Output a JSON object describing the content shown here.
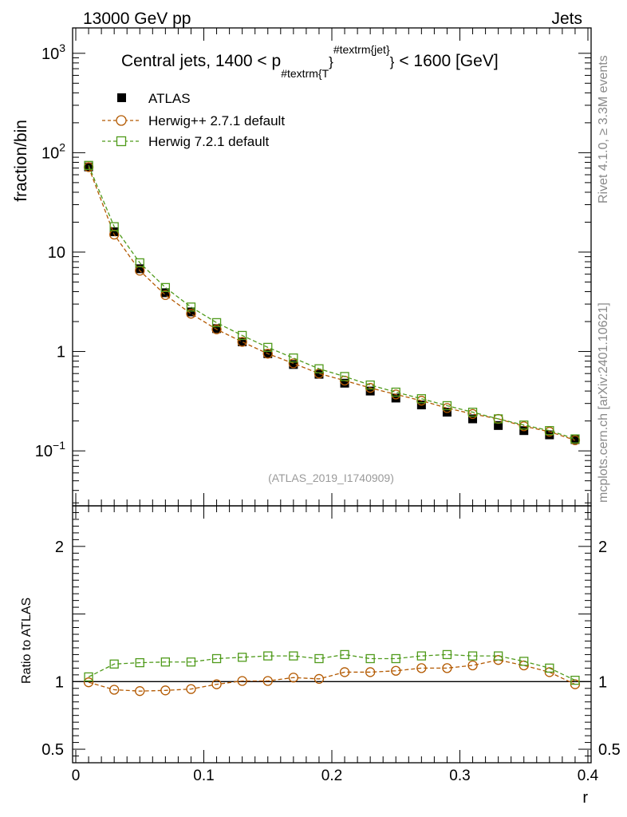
{
  "header": {
    "left": "13000 GeV pp",
    "right": "Jets"
  },
  "side_labels": {
    "rivet": "Rivet 4.1.0, ≥ 3.3M events",
    "mcplots": "mcplots.cern.ch [arXiv:2401.10621]"
  },
  "chart_data": {
    "type": "line",
    "title": "Central jets, 1400 < p",
    "title_sub": "#textrm{T",
    "title_sup": "#textrm{jet}",
    "title_end": "< 1600 [GeV]",
    "watermark": "(ATLAS_2019_I1740909)",
    "xlabel": "r",
    "ylabel_main": "fraction/bin",
    "ylabel_ratio": "Ratio to ATLAS",
    "xlim": [
      -0.0025,
      0.4025
    ],
    "ylim_main": [
      0.028,
      1800
    ],
    "ylim_ratio": [
      0.4,
      2.3
    ],
    "x_ticks": [
      0,
      0.1,
      0.2,
      0.3,
      0.4
    ],
    "x_tick_labels": [
      "0",
      "0.1",
      "0.2",
      "0.3",
      "0.4"
    ],
    "y_ticks_main": [
      0.1,
      1,
      10,
      100,
      1000
    ],
    "y_tick_labels_main": [
      {
        "base": "10",
        "exp": "−1"
      },
      {
        "base": "1",
        "exp": ""
      },
      {
        "base": "10",
        "exp": ""
      },
      {
        "base": "10",
        "exp": "2"
      },
      {
        "base": "10",
        "exp": "3"
      }
    ],
    "y_ticks_ratio": [
      0.5,
      1,
      2
    ],
    "y_tick_labels_ratio": [
      "0.5",
      "1",
      "2"
    ],
    "x": [
      0.01,
      0.03,
      0.05,
      0.07,
      0.09,
      0.11,
      0.13,
      0.15,
      0.17,
      0.19,
      0.21,
      0.23,
      0.25,
      0.27,
      0.29,
      0.31,
      0.33,
      0.35,
      0.37,
      0.39
    ],
    "series": [
      {
        "name": "ATLAS",
        "color": "#000000",
        "marker": "filled-square",
        "values": [
          72,
          16,
          6.8,
          3.9,
          2.5,
          1.7,
          1.25,
          0.95,
          0.74,
          0.59,
          0.48,
          0.4,
          0.34,
          0.29,
          0.245,
          0.21,
          0.18,
          0.16,
          0.145,
          0.13
        ],
        "ratio": [
          1,
          1,
          1,
          1,
          1,
          1,
          1,
          1,
          1,
          1,
          1,
          1,
          1,
          1,
          1,
          1,
          1,
          1,
          1,
          1
        ]
      },
      {
        "name": "Herwig++ 2.7.1 default",
        "color": "#b35900",
        "marker": "open-circle",
        "values": [
          71.6,
          15.0,
          6.5,
          3.7,
          2.4,
          1.67,
          1.25,
          0.95,
          0.76,
          0.6,
          0.51,
          0.43,
          0.37,
          0.32,
          0.27,
          0.235,
          0.21,
          0.177,
          0.156,
          0.128
        ],
        "ratio": [
          0.995,
          0.94,
          0.93,
          0.935,
          0.945,
          0.98,
          1.005,
          1.005,
          1.03,
          1.02,
          1.07,
          1.07,
          1.08,
          1.1,
          1.1,
          1.12,
          1.16,
          1.12,
          1.07,
          0.98
        ]
      },
      {
        "name": "Herwig 7.2.1 default",
        "color": "#4f9a1a",
        "marker": "open-square",
        "values": [
          74.5,
          18.0,
          7.8,
          4.4,
          2.8,
          1.95,
          1.45,
          1.1,
          0.86,
          0.67,
          0.56,
          0.46,
          0.39,
          0.335,
          0.285,
          0.245,
          0.21,
          0.182,
          0.16,
          0.132
        ],
        "ratio": [
          1.035,
          1.13,
          1.14,
          1.145,
          1.145,
          1.17,
          1.18,
          1.19,
          1.19,
          1.17,
          1.2,
          1.17,
          1.17,
          1.19,
          1.2,
          1.19,
          1.19,
          1.15,
          1.1,
          1.01
        ]
      }
    ],
    "legend_position": "top-left"
  }
}
